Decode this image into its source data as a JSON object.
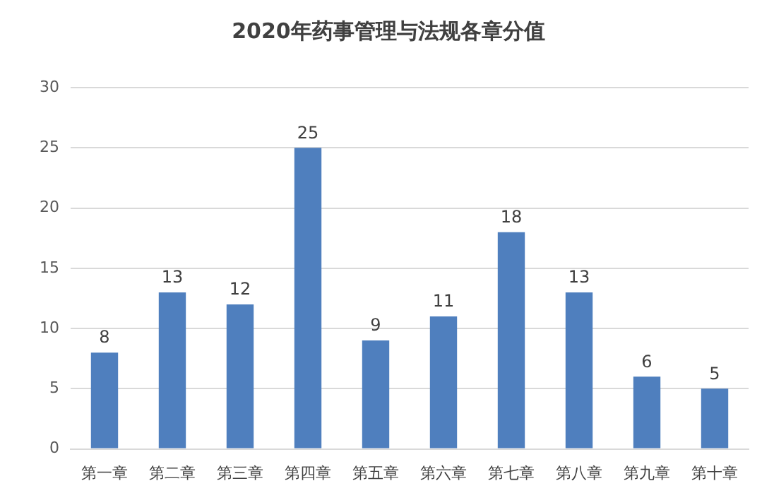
{
  "chart_data": {
    "type": "bar",
    "title": "2020年药事管理与法规各章分值",
    "categories": [
      "第一章",
      "第二章",
      "第三章",
      "第四章",
      "第五章",
      "第六章",
      "第七章",
      "第八章",
      "第九章",
      "第十章"
    ],
    "values": [
      8,
      13,
      12,
      25,
      9,
      11,
      18,
      13,
      6,
      5
    ],
    "color": "#4f7fbe",
    "ylim": [
      0,
      30
    ],
    "yticks": [
      0,
      5,
      10,
      15,
      20,
      25,
      30
    ],
    "grid": "y",
    "data_labels": true,
    "legend": false
  }
}
